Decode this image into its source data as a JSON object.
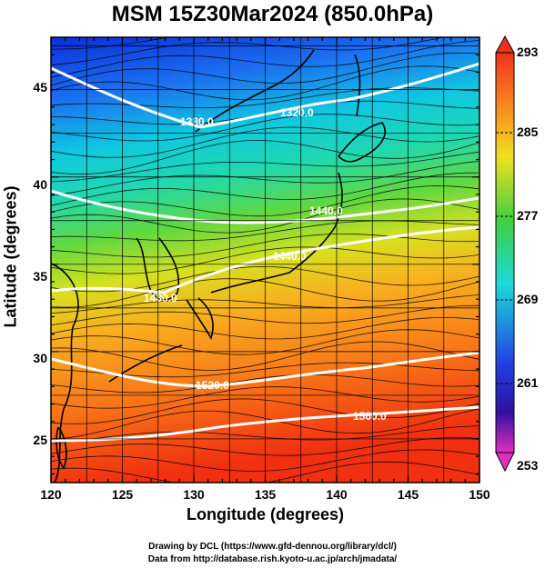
{
  "title": "MSM 15Z30Mar2024 (850.0hPa)",
  "xlabel": "Longitude (degrees)",
  "ylabel": "Latitude  (degrees)",
  "credits": {
    "line1": "Drawing by DCL (https://www.gfd-dennou.org/library/dcl/)",
    "line2": "Data from http://database.rish.kyoto-u.ac.jp/arch/jmadata/"
  },
  "map": {
    "lon_range": [
      120,
      150
    ],
    "lat_range": [
      22.5,
      48
    ],
    "lon_ticks": [
      "120",
      "125",
      "130",
      "135",
      "140",
      "145",
      "150"
    ],
    "lat_ticks": [
      "25",
      "30",
      "35",
      "40",
      "45"
    ],
    "grid": true
  },
  "colorbar": {
    "ticks": [
      "293",
      "285",
      "277",
      "269",
      "261",
      "253"
    ],
    "range": [
      253,
      293
    ]
  },
  "contour_labels": [
    "1380.0",
    "1320.0",
    "1440.0",
    "1440.0",
    "1480.0",
    "1520.0",
    "1560.0"
  ],
  "colors": {
    "cold": "#1040e0",
    "cool": "#00c8e8",
    "mild": "#30d060",
    "warm": "#f0d020",
    "hot": "#f04010",
    "contour": "#ffffff"
  }
}
